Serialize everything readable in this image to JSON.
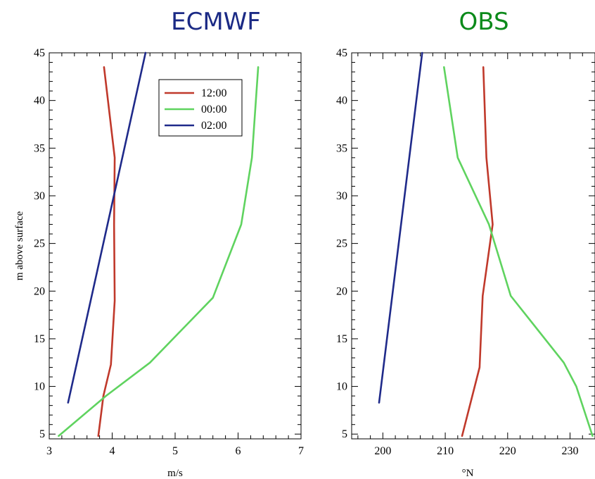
{
  "chart_data": [
    {
      "type": "line",
      "title": "ECMWF",
      "title_color": "#1b2a85",
      "xlabel": "m/s",
      "ylabel": "m above surface",
      "xlim": [
        3,
        7
      ],
      "ylim": [
        4.5,
        45
      ],
      "x_ticks": [
        3,
        4,
        5,
        6,
        7
      ],
      "y_ticks": [
        5,
        10,
        15,
        20,
        25,
        30,
        35,
        40,
        45
      ],
      "grid": false,
      "legend_position": "top-right",
      "series": [
        {
          "name": "12:00",
          "color": "#c0392b",
          "points": [
            [
              3.78,
              4.8
            ],
            [
              3.86,
              9.0
            ],
            [
              3.98,
              12.3
            ],
            [
              4.04,
              19.0
            ],
            [
              4.03,
              27.0
            ],
            [
              4.04,
              34.0
            ],
            [
              3.87,
              43.5
            ]
          ]
        },
        {
          "name": "00:00",
          "color": "#5fd35f",
          "points": [
            [
              3.15,
              4.8
            ],
            [
              3.9,
              9.0
            ],
            [
              4.6,
              12.5
            ],
            [
              5.6,
              19.3
            ],
            [
              6.05,
              27.0
            ],
            [
              6.22,
              34.0
            ],
            [
              6.32,
              43.5
            ]
          ]
        },
        {
          "name": "02:00",
          "color": "#1f2a8a",
          "points": [
            [
              3.3,
              8.3
            ],
            [
              4.53,
              45.0
            ]
          ]
        }
      ]
    },
    {
      "type": "line",
      "title": "OBS",
      "title_color": "#0b8a1a",
      "xlabel": "°N",
      "ylabel": "",
      "xlim": [
        195,
        234
      ],
      "ylim": [
        4.5,
        45
      ],
      "x_ticks": [
        200,
        210,
        220,
        230
      ],
      "y_ticks": [
        5,
        10,
        15,
        20,
        25,
        30,
        35,
        40,
        45
      ],
      "grid": false,
      "series": [
        {
          "name": "12:00",
          "color": "#c0392b",
          "points": [
            [
              212.7,
              4.8
            ],
            [
              215.5,
              12.0
            ],
            [
              216.0,
              19.5
            ],
            [
              217.6,
              27.0
            ],
            [
              216.6,
              34.0
            ],
            [
              216.1,
              43.5
            ]
          ]
        },
        {
          "name": "00:00",
          "color": "#5fd35f",
          "points": [
            [
              233.6,
              4.8
            ],
            [
              231.0,
              10.0
            ],
            [
              229.0,
              12.5
            ],
            [
              220.5,
              19.5
            ],
            [
              217.0,
              27.0
            ],
            [
              212.0,
              34.0
            ],
            [
              209.8,
              43.5
            ]
          ]
        },
        {
          "name": "02:00",
          "color": "#1f2a8a",
          "points": [
            [
              199.4,
              8.3
            ],
            [
              206.3,
              45.0
            ]
          ]
        }
      ]
    }
  ]
}
